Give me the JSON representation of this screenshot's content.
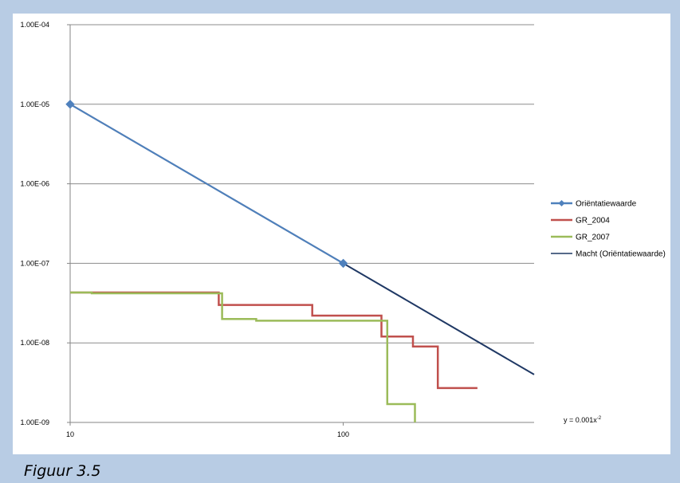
{
  "caption": "Figuur 3.5",
  "chart_data": {
    "type": "line",
    "x_scale": "log",
    "y_scale": "log",
    "xlim": [
      10,
      500
    ],
    "ylim": [
      1e-09,
      0.0001
    ],
    "x_tick_values": [
      10,
      100
    ],
    "x_tick_labels": [
      "10",
      "100"
    ],
    "y_tick_values": [
      1e-09,
      1e-08,
      1e-07,
      1e-06,
      1e-05,
      0.0001
    ],
    "y_tick_labels": [
      "1.00E-09",
      "1.00E-08",
      "1.00E-07",
      "1.00E-06",
      "1.00E-05",
      "1.00E-04"
    ],
    "grid": "horizontal",
    "legend_position": "right",
    "series": [
      {
        "name": "Oriëntatiewaarde",
        "style": "line-markers",
        "color": "#4f81bd",
        "points": [
          [
            10,
            1e-05
          ],
          [
            100,
            1e-07
          ]
        ]
      },
      {
        "name": "GR_2004",
        "style": "step",
        "color": "#c0504d",
        "points": [
          [
            10,
            4.3e-08
          ],
          [
            35,
            4.3e-08
          ],
          [
            35,
            3e-08
          ],
          [
            77,
            3e-08
          ],
          [
            77,
            2.2e-08
          ],
          [
            138,
            2.2e-08
          ],
          [
            138,
            1.2e-08
          ],
          [
            180,
            1.2e-08
          ],
          [
            180,
            9e-09
          ],
          [
            222,
            9e-09
          ],
          [
            222,
            2.7e-09
          ],
          [
            310,
            2.7e-09
          ]
        ]
      },
      {
        "name": "GR_2007",
        "style": "step",
        "color": "#9bbb59",
        "points": [
          [
            10,
            4.3e-08
          ],
          [
            12,
            4.3e-08
          ],
          [
            12,
            4.2e-08
          ],
          [
            36,
            4.2e-08
          ],
          [
            36,
            2e-08
          ],
          [
            48,
            2e-08
          ],
          [
            48,
            1.9e-08
          ],
          [
            145,
            1.9e-08
          ],
          [
            145,
            1.7e-09
          ],
          [
            183,
            1.7e-09
          ],
          [
            183,
            1e-09
          ]
        ]
      },
      {
        "name": "Macht (Oriëntatiewaarde)",
        "style": "trendline",
        "color": "#1f3864",
        "points": [
          [
            10,
            1e-05
          ],
          [
            500,
            4e-09
          ]
        ]
      }
    ],
    "equation": "y = 0.001x",
    "equation_exponent": "-2"
  }
}
